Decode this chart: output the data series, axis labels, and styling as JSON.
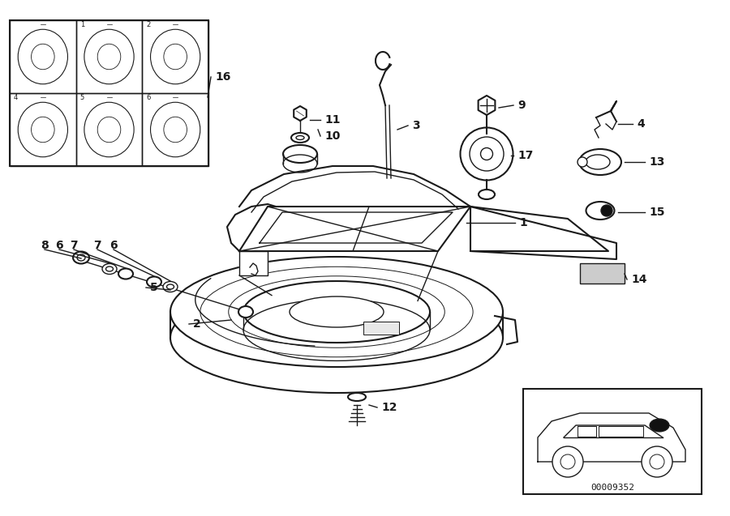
{
  "bg_color": "#ffffff",
  "line_color": "#1a1a1a",
  "diagram_id": "00009352",
  "fig_width": 9.0,
  "fig_height": 6.37
}
